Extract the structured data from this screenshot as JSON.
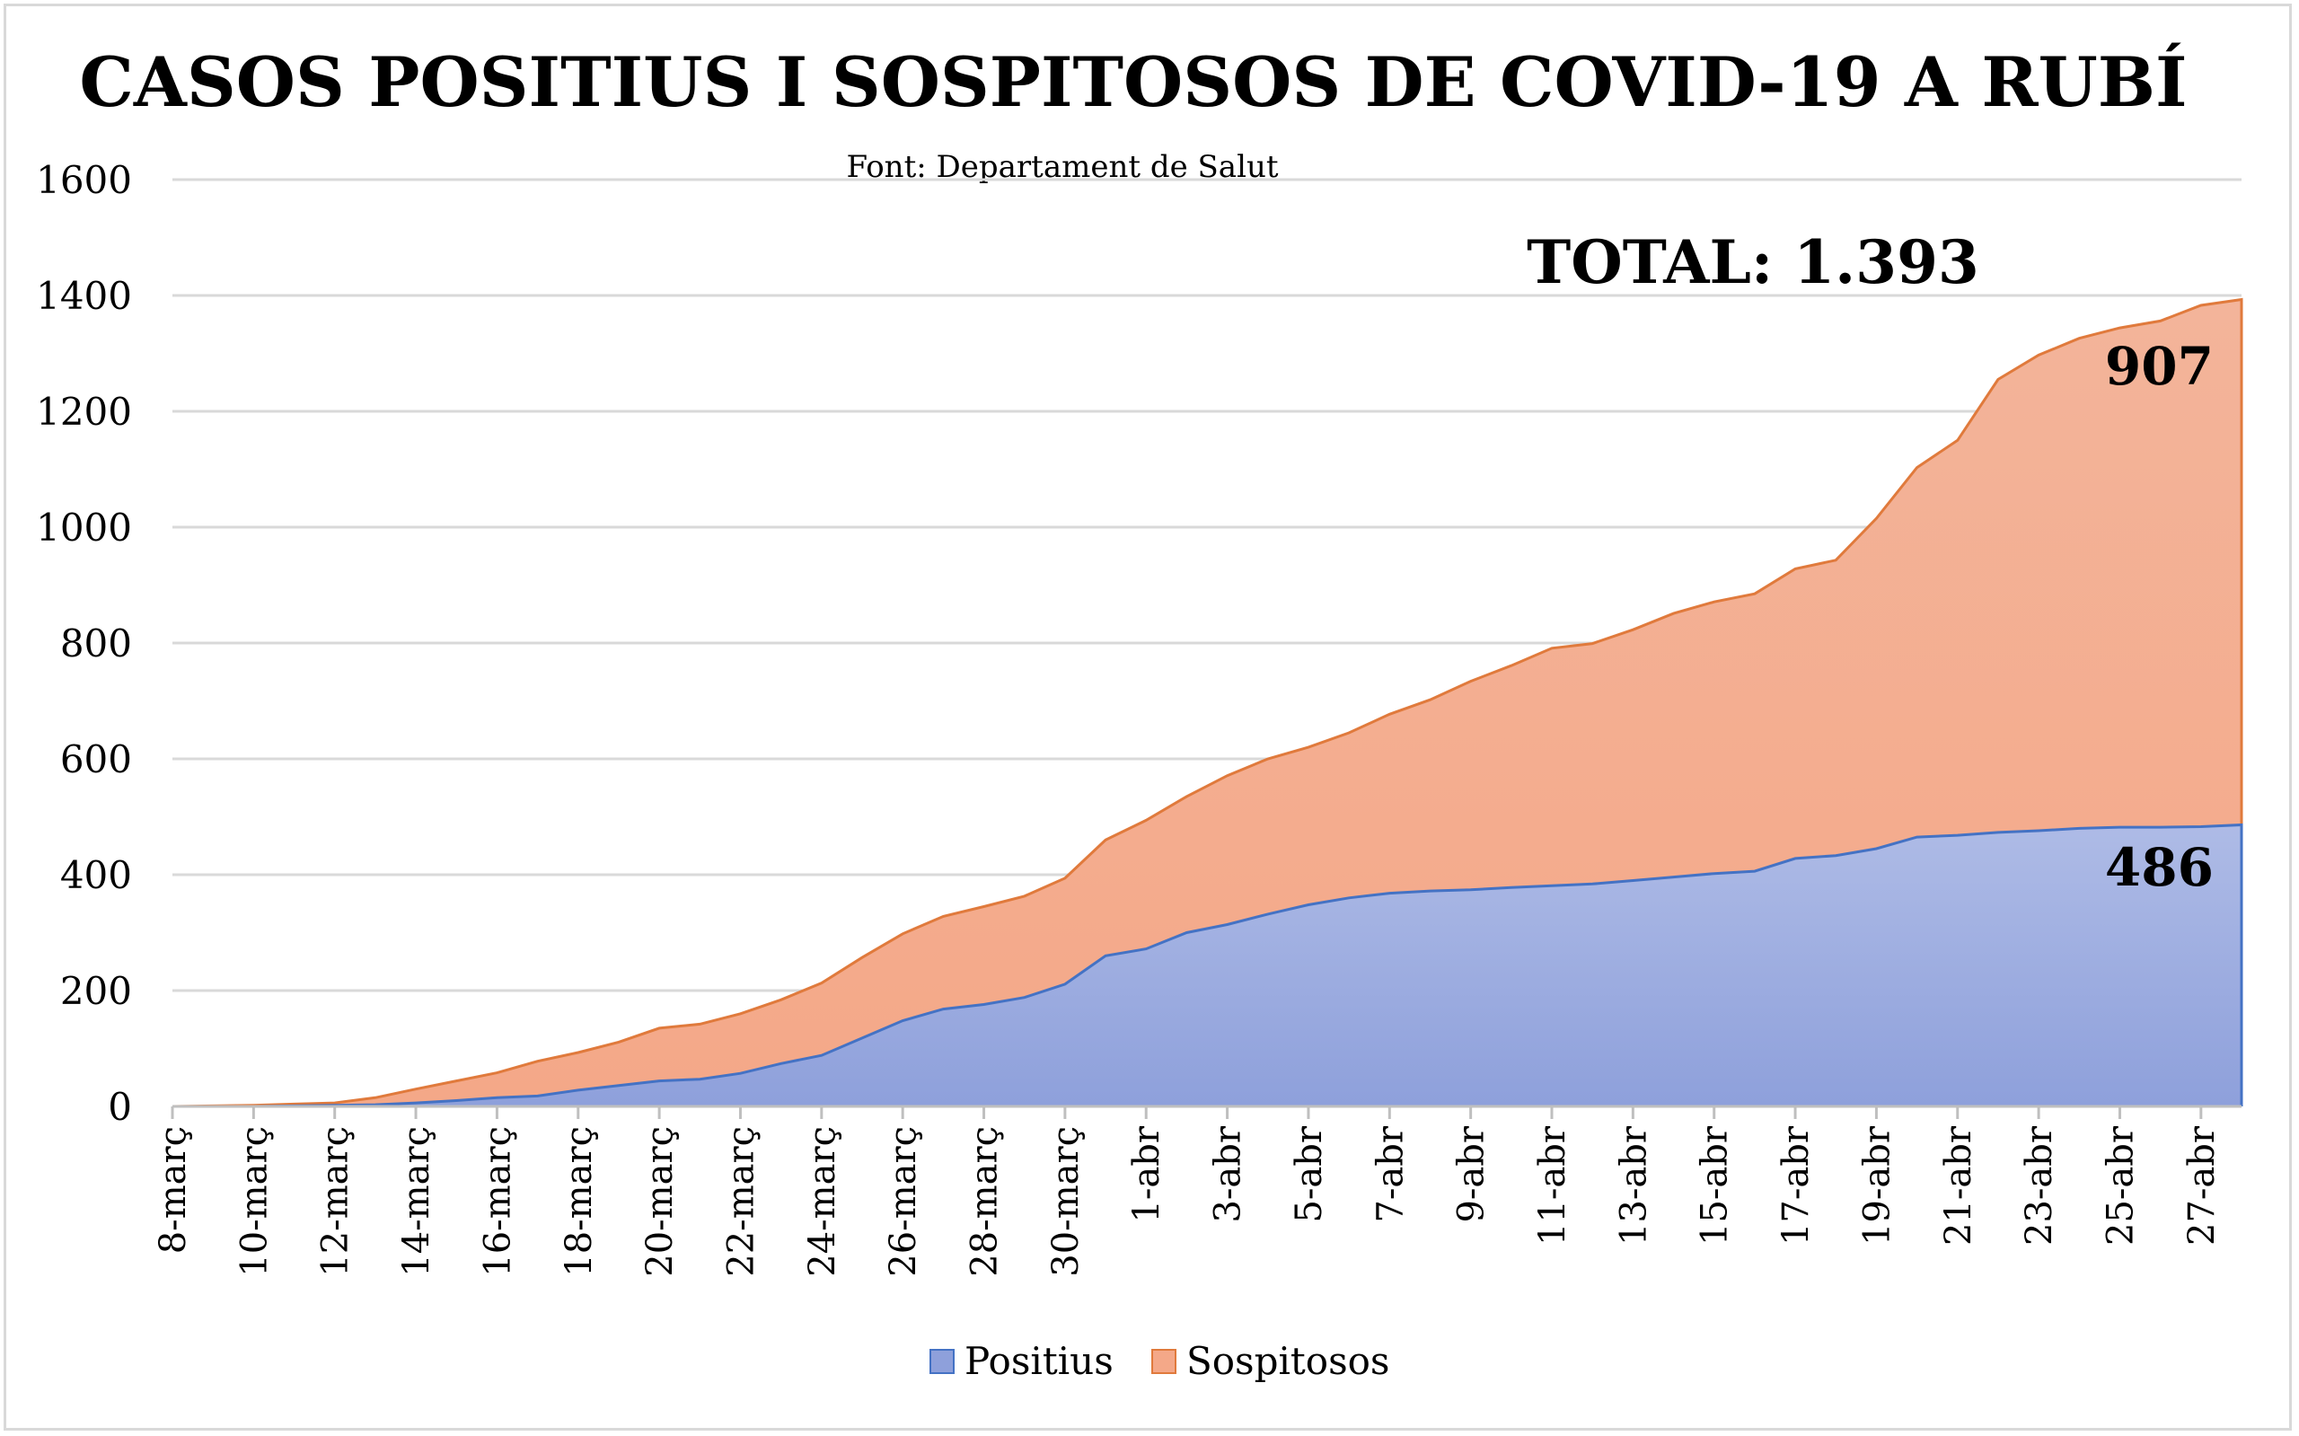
{
  "chart_data": {
    "type": "area",
    "stacked": true,
    "title": "CASOS POSITIUS I SOSPITOSOS DE COVID-19 A RUBÍ",
    "subtitle": "Font: Departament de Salut",
    "annotation_total": "TOTAL: 1.393",
    "annotation_sospitosos": "907",
    "annotation_positius": "486",
    "ylim": [
      0,
      1600
    ],
    "yticks": [
      0,
      200,
      400,
      600,
      800,
      1000,
      1200,
      1400,
      1600
    ],
    "grid": true,
    "legend_position": "bottom",
    "x": [
      "8-març",
      "9-març",
      "10-març",
      "11-març",
      "12-març",
      "13-març",
      "14-març",
      "15-març",
      "16-març",
      "17-març",
      "18-març",
      "19-març",
      "20-març",
      "21-març",
      "22-març",
      "23-març",
      "24-març",
      "25-març",
      "26-març",
      "27-març",
      "28-març",
      "29-març",
      "30-març",
      "31-març",
      "1-abr",
      "2-abr",
      "3-abr",
      "4-abr",
      "5-abr",
      "6-abr",
      "7-abr",
      "8-abr",
      "9-abr",
      "10-abr",
      "11-abr",
      "12-abr",
      "13-abr",
      "14-abr",
      "15-abr",
      "16-abr",
      "17-abr",
      "18-abr",
      "19-abr",
      "20-abr",
      "21-abr",
      "22-abr",
      "23-abr",
      "24-abr",
      "25-abr",
      "26-abr",
      "27-abr",
      "28-abr"
    ],
    "x_tick_labels": [
      "8-març",
      "10-març",
      "12-març",
      "14-març",
      "16-març",
      "18-març",
      "20-març",
      "22-març",
      "24-març",
      "26-març",
      "28-març",
      "30-març",
      "1-abr",
      "3-abr",
      "5-abr",
      "7-abr",
      "9-abr",
      "11-abr",
      "13-abr",
      "15-abr",
      "17-abr",
      "19-abr",
      "21-abr",
      "23-abr",
      "25-abr",
      "27-abr"
    ],
    "series": [
      {
        "name": "Positius",
        "color": "#8ea0db",
        "values": [
          0,
          0,
          0,
          1,
          2,
          3,
          6,
          10,
          15,
          18,
          28,
          36,
          44,
          47,
          57,
          74,
          88,
          118,
          148,
          168,
          176,
          188,
          211,
          260,
          272,
          300,
          314,
          332,
          348,
          360,
          368,
          372,
          374,
          378,
          381,
          384,
          390,
          396,
          402,
          406,
          428,
          433,
          445,
          465,
          468,
          473,
          476,
          480,
          482,
          482,
          483,
          486
        ]
      },
      {
        "name": "Sospitosos",
        "color": "#f4a888",
        "values": [
          0,
          1,
          2,
          3,
          4,
          12,
          24,
          34,
          43,
          60,
          65,
          75,
          91,
          95,
          103,
          110,
          125,
          139,
          150,
          160,
          169,
          175,
          183,
          200,
          222,
          235,
          257,
          268,
          272,
          285,
          309,
          330,
          360,
          383,
          410,
          415,
          433,
          455,
          469,
          479,
          500,
          510,
          570,
          638,
          682,
          782,
          821,
          846,
          862,
          874,
          900,
          907
        ]
      }
    ]
  }
}
